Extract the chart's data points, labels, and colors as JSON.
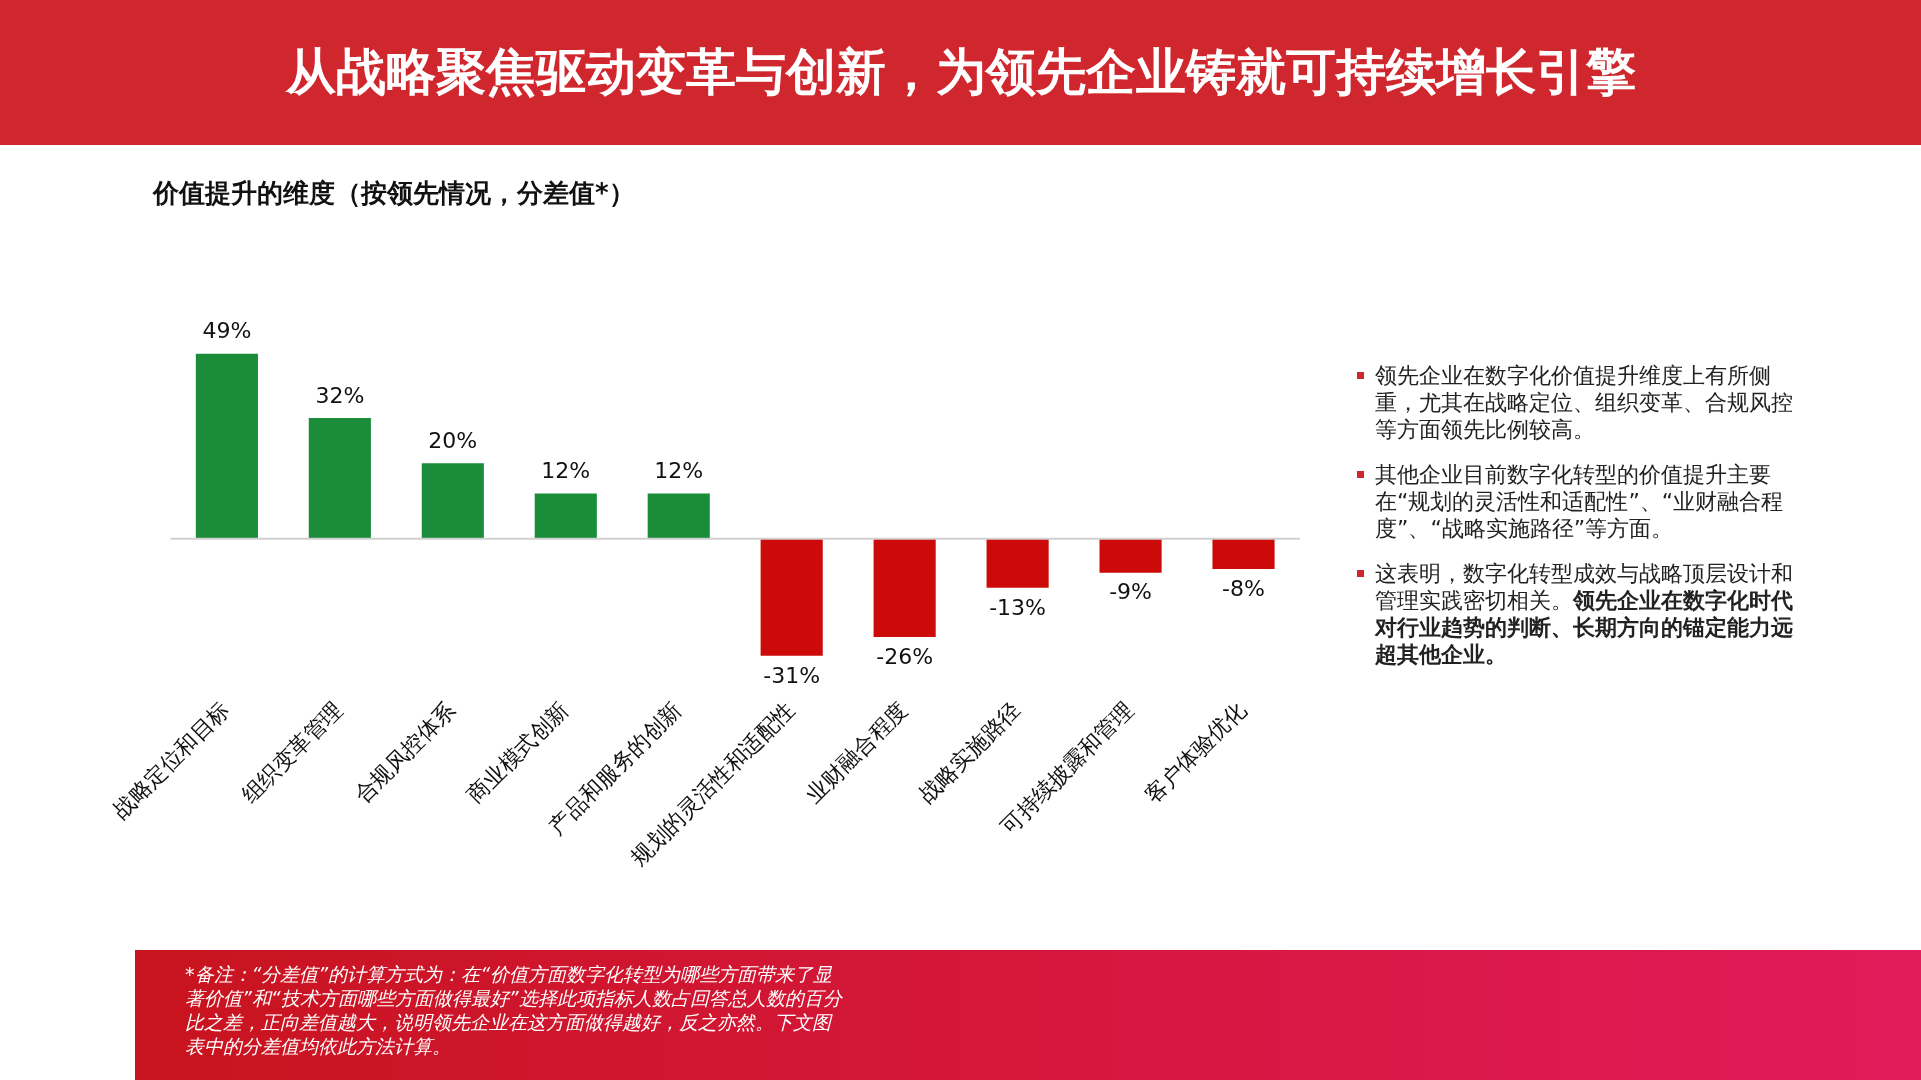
{
  "chart_data": {
    "type": "bar",
    "title": "从战略聚焦驱动变革与创新，为领先企业铸就可持续增长引擎",
    "subtitle": "价值提升的维度（按领先情况，分差值*）",
    "categories": [
      "战略定位和目标",
      "组织变革管理",
      "合规风控体系",
      "商业模式创新",
      "产品和服务的创新",
      "规划的灵活性和适配性",
      "业财融合程度",
      "战略实施路径",
      "可持续披露和管理",
      "客户体验优化"
    ],
    "values": [
      49,
      32,
      20,
      12,
      12,
      -31,
      -26,
      -13,
      -9,
      -8
    ],
    "value_labels": [
      "49%",
      "32%",
      "20%",
      "12%",
      "12%",
      "-31%",
      "-26%",
      "-13%",
      "-9%",
      "-8%"
    ],
    "colors": [
      "#1a8c3a",
      "#1a8c3a",
      "#1a8c3a",
      "#1a8c3a",
      "#1a8c3a",
      "#cc0a0a",
      "#cc0a0a",
      "#cc0a0a",
      "#cc0a0a",
      "#cc0a0a"
    ],
    "grid": false,
    "legend": false,
    "tick_labels": "x",
    "annotations": [
      "领先企业在数字化价值提升维度上有所侧重，尤其在战略定位、组织变革、合规风控等方面领先比例较高。",
      "其他企业目前数字化转型的价值提升主要在“规划的灵活性和适配性”、“业财融合程度”、“战略实施路径”等方面。",
      "这表明，数字化转型成效与战略顶层设计和管理实践密切相关。",
      "领先企业在数字化时代对行业趋势的判断、长期方向的锚定能力远超其他企业。",
      "*备注：“分差值”的计算方式为：在“价值方面数字化转型为哪些方面带来了显著价值”和“技术方面哪些方面做得最好”选择此项指标人数占回答总人数的百分比之差，正向差值越大，说明领先企业在这方面做得越好，反之亦然。下文图表中的分差值均依此方法计算。"
    ]
  }
}
